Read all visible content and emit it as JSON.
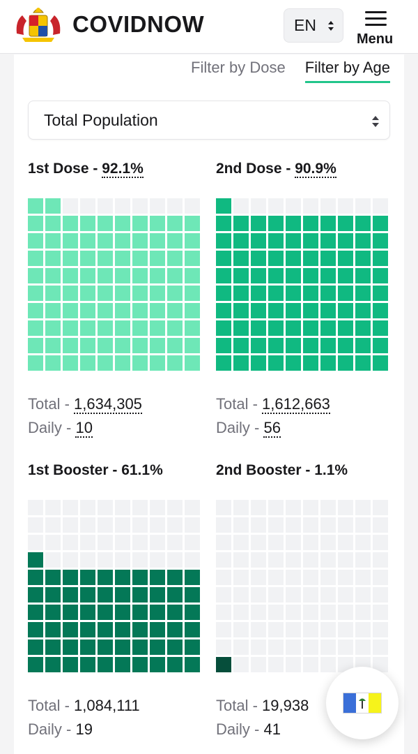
{
  "header": {
    "brand": "COVIDNOW",
    "language": "EN",
    "menu_label": "Menu"
  },
  "filters": {
    "dose_label": "Filter by Dose",
    "age_label": "Filter by Age",
    "active": "age"
  },
  "population_select": {
    "value": "Total Population"
  },
  "panels": [
    {
      "title": "1st Dose",
      "separator": " - ",
      "percent": "92.1%",
      "percent_value": 92.1,
      "filled_cells": 92,
      "color": "#6ee7b7",
      "total_label": "Total",
      "total_value": "1,634,305",
      "daily_label": "Daily",
      "daily_value": "10",
      "dotted": true
    },
    {
      "title": "2nd Dose",
      "separator": " - ",
      "percent": "90.9%",
      "percent_value": 90.9,
      "filled_cells": 91,
      "color": "#10b981",
      "total_label": "Total",
      "total_value": "1,612,663",
      "daily_label": "Daily",
      "daily_value": "56",
      "dotted": true
    },
    {
      "title": "1st Booster",
      "separator": " - ",
      "percent": "61.1%",
      "percent_value": 61.1,
      "filled_cells": 61,
      "color": "#047857",
      "total_label": "Total",
      "total_value": "1,084,111",
      "daily_label": "Daily",
      "daily_value": "19",
      "dotted": false
    },
    {
      "title": "2nd Booster",
      "separator": " - ",
      "percent": "1.1%",
      "percent_value": 1.1,
      "filled_cells": 1,
      "color": "#064e3b",
      "total_label": "Total",
      "total_value": "19,938",
      "daily_label": "Daily",
      "daily_value": "41",
      "dotted": false
    }
  ],
  "fab": {
    "icon": "state-flag-icon"
  }
}
